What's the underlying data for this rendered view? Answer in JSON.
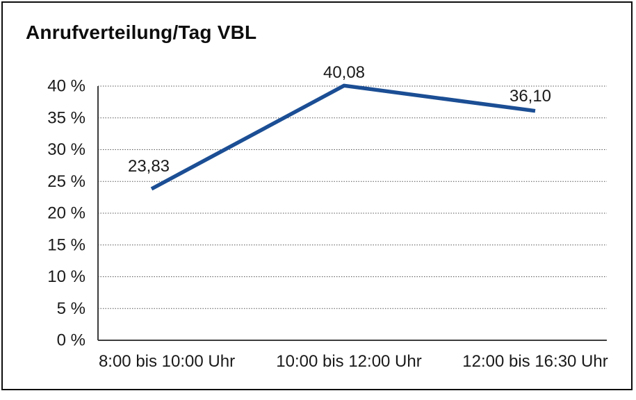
{
  "title": "Anrufverteilung/Tag VBL",
  "chart_data": {
    "type": "line",
    "title": "Anrufverteilung/Tag VBL",
    "categories": [
      "8:00 bis 10:00 Uhr",
      "10:00 bis 12:00 Uhr",
      "12:00 bis 16:30 Uhr"
    ],
    "series": [
      {
        "name": "Anrufverteilung",
        "values": [
          23.83,
          40.08,
          36.1
        ],
        "point_labels": [
          "23,83",
          "40,08",
          "36,10"
        ]
      }
    ],
    "xlabel": "",
    "ylabel": "",
    "ylim": [
      0,
      40
    ],
    "y_tick_step": 5,
    "y_tick_labels": [
      "0 %",
      "5 %",
      "10 %",
      "15 %",
      "20 %",
      "25 %",
      "30 %",
      "35 %",
      "40 %"
    ],
    "grid": "horizontal-dotted",
    "legend": "none",
    "line_color": "#1b4e94",
    "axis_color": "#3c3c3c",
    "grid_color": "#4a4a4a",
    "label_color": "#1a1a1a"
  }
}
